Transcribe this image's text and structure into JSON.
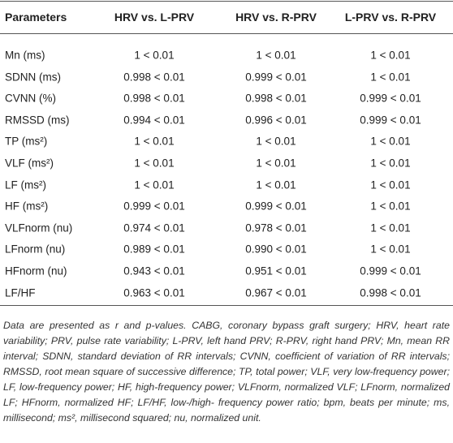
{
  "table": {
    "header": [
      "Parameters",
      "HRV vs. L-PRV",
      "HRV vs. R-PRV",
      "L-PRV vs. R-PRV"
    ],
    "rows": [
      [
        "Mn (ms)",
        "1 < 0.01",
        "1 < 0.01",
        "1 < 0.01"
      ],
      [
        "SDNN (ms)",
        "0.998 < 0.01",
        "0.999 < 0.01",
        "1 < 0.01"
      ],
      [
        "CVNN (%)",
        "0.998 < 0.01",
        "0.998 < 0.01",
        "0.999 < 0.01"
      ],
      [
        "RMSSD (ms)",
        "0.994 < 0.01",
        "0.996 < 0.01",
        "0.999 < 0.01"
      ],
      [
        "TP (ms²)",
        "1 < 0.01",
        "1 < 0.01",
        "1 < 0.01"
      ],
      [
        "VLF (ms²)",
        "1 < 0.01",
        "1 < 0.01",
        "1 < 0.01"
      ],
      [
        "LF (ms²)",
        "1 < 0.01",
        "1 < 0.01",
        "1 < 0.01"
      ],
      [
        "HF (ms²)",
        "0.999 < 0.01",
        "0.999 < 0.01",
        "1 < 0.01"
      ],
      [
        "VLFnorm (nu)",
        "0.974 < 0.01",
        "0.978 < 0.01",
        "1 < 0.01"
      ],
      [
        "LFnorm (nu)",
        "0.989 < 0.01",
        "0.990 < 0.01",
        "1 < 0.01"
      ],
      [
        "HFnorm (nu)",
        "0.943 < 0.01",
        "0.951 < 0.01",
        "0.999 < 0.01"
      ],
      [
        "LF/HF",
        "0.963 < 0.01",
        "0.967 < 0.01",
        "0.998 < 0.01"
      ]
    ],
    "footnote": "Data are presented as r and p-values. CABG, coronary bypass graft surgery; HRV, heart rate variability; PRV, pulse rate variability; L-PRV, left hand PRV; R-PRV, right hand PRV; Mn, mean RR interval; SDNN, standard deviation of RR intervals; CVNN, coefficient of variation of RR intervals; RMSSD, root mean square of successive difference; TP, total power; VLF, very low-frequency power; LF, low-frequency power; HF, high-frequency power; VLFnorm, normalized VLF; LFnorm, normalized LF; HFnorm, normalized HF; LF/HF, low-/high- frequency power ratio; bpm, beats per minute; ms, millisecond; ms², millisecond squared; nu, normalized unit."
  }
}
